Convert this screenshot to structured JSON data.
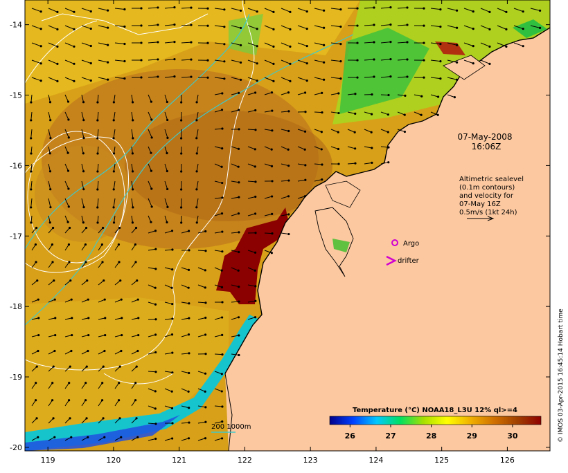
{
  "map": {
    "x_ticks": [
      "119",
      "120",
      "121",
      "122",
      "123",
      "124",
      "125",
      "126"
    ],
    "y_ticks": [
      "-14",
      "-15",
      "-16",
      "-17",
      "-18",
      "-19",
      "-20"
    ],
    "lon_range": [
      118.65,
      126.65
    ],
    "lat_range": [
      -20.05,
      -13.65
    ]
  },
  "annotations": {
    "date": "07-May-2008",
    "time": "16:06Z",
    "altimetry_lines": [
      "Altimetric sealevel",
      "(0.1m contours)",
      "and velocity for",
      "07-May 16Z",
      "0.5m/s (1kt 24h)"
    ],
    "argo_label": "Argo",
    "drifter_label": "drifter",
    "isobath_label": "200  1000m"
  },
  "colorbar": {
    "title": "Temperature (°C) NOAA18_L3U 12% ql>=4",
    "ticks": [
      "26",
      "27",
      "28",
      "29",
      "30"
    ],
    "range": [
      25.5,
      30.7
    ],
    "colors": [
      "#00008b",
      "#0040ff",
      "#00c8ff",
      "#00e060",
      "#a8e000",
      "#ffff00",
      "#f0b000",
      "#d07000",
      "#a04000",
      "#900000"
    ]
  },
  "credit": "© IMOS 03-Apr-2015 16:45:14 Hobart time",
  "colors": {
    "land": "#fcc8a0",
    "ocean_base": "#d8a018",
    "warm_patch": "#8b0000",
    "argo": "#d000d0",
    "contour": "#ffffff",
    "isobath": "#40c8c8"
  }
}
